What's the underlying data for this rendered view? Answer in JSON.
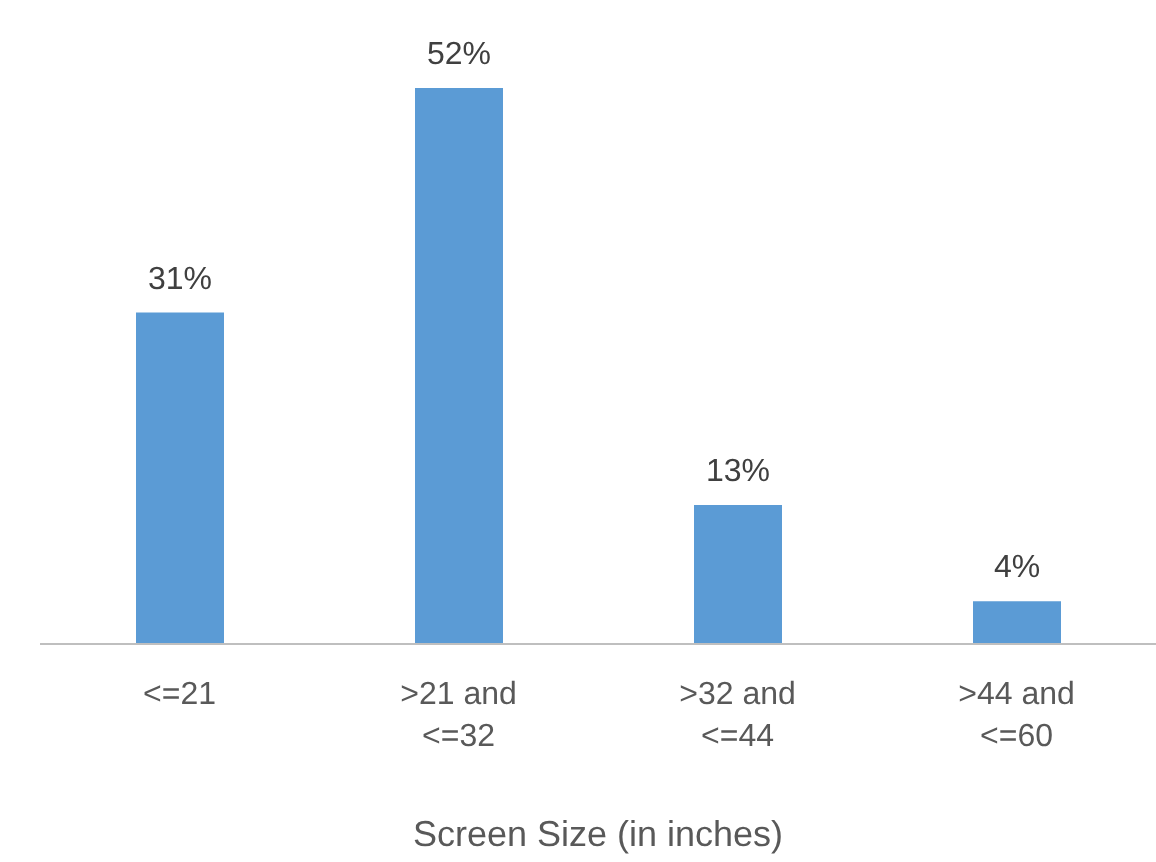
{
  "chart_data": {
    "type": "bar",
    "xlabel": "Screen Size (in inches)",
    "categories": [
      "<=21",
      ">21 and <=32",
      ">32 and <=44",
      ">44 and <=60"
    ],
    "values": [
      31,
      52,
      13,
      4
    ],
    "value_labels": [
      "31%",
      "52%",
      "13%",
      "4%"
    ],
    "color": "#5b9bd5",
    "grid": false,
    "legend": false
  }
}
